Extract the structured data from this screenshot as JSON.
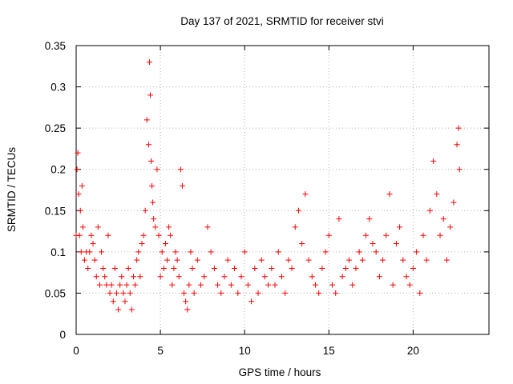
{
  "chart_data": {
    "type": "scatter",
    "title": "Day 137 of 2021, SRMTID for receiver stvi",
    "xlabel": "GPS time / hours",
    "ylabel": "SRMTID / TECUs",
    "xlim": [
      0,
      24.5
    ],
    "ylim": [
      0,
      0.35
    ],
    "x_ticks": [
      0,
      5,
      10,
      15,
      20
    ],
    "x_tick_labels": [
      "0",
      "5",
      "10",
      "15",
      "20"
    ],
    "y_ticks": [
      0,
      0.05,
      0.1,
      0.15,
      0.2,
      0.25,
      0.3,
      0.35
    ],
    "y_tick_labels": [
      "0",
      "0.05",
      "0.1",
      "0.15",
      "0.2",
      "0.25",
      "0.3",
      "0.35"
    ],
    "grid": true,
    "marker": "plus",
    "series": [
      {
        "name": "SRMTID",
        "color": "#ff0000",
        "x": [
          0.0,
          0.05,
          0.1,
          0.15,
          0.2,
          0.25,
          0.3,
          0.35,
          0.4,
          0.5,
          0.6,
          0.7,
          0.8,
          0.9,
          1.0,
          1.1,
          1.2,
          1.3,
          1.4,
          1.5,
          1.6,
          1.7,
          1.8,
          1.9,
          2.0,
          2.1,
          2.2,
          2.3,
          2.4,
          2.5,
          2.6,
          2.7,
          2.8,
          2.9,
          3.0,
          3.1,
          3.2,
          3.3,
          3.4,
          3.5,
          3.6,
          3.7,
          3.8,
          3.9,
          4.0,
          4.1,
          4.2,
          4.3,
          4.35,
          4.4,
          4.45,
          4.5,
          4.55,
          4.6,
          4.7,
          4.8,
          4.9,
          5.0,
          5.1,
          5.2,
          5.3,
          5.4,
          5.5,
          5.6,
          5.7,
          5.8,
          5.9,
          6.0,
          6.1,
          6.2,
          6.3,
          6.4,
          6.5,
          6.6,
          6.7,
          6.8,
          6.9,
          7.0,
          7.2,
          7.4,
          7.6,
          7.8,
          8.0,
          8.2,
          8.4,
          8.6,
          8.8,
          9.0,
          9.2,
          9.4,
          9.6,
          9.8,
          10.0,
          10.2,
          10.4,
          10.6,
          10.8,
          11.0,
          11.2,
          11.4,
          11.6,
          11.8,
          12.0,
          12.2,
          12.4,
          12.6,
          12.8,
          13.0,
          13.2,
          13.4,
          13.6,
          13.8,
          14.0,
          14.2,
          14.4,
          14.6,
          14.8,
          15.0,
          15.2,
          15.4,
          15.6,
          15.8,
          16.0,
          16.2,
          16.4,
          16.6,
          16.8,
          17.0,
          17.2,
          17.4,
          17.6,
          17.8,
          18.0,
          18.2,
          18.4,
          18.6,
          18.8,
          19.0,
          19.2,
          19.4,
          19.6,
          19.8,
          20.0,
          20.2,
          20.4,
          20.6,
          20.8,
          21.0,
          21.2,
          21.4,
          21.6,
          21.8,
          22.0,
          22.2,
          22.4,
          22.6,
          22.7,
          22.75
        ],
        "y": [
          0.12,
          0.2,
          0.22,
          0.17,
          0.12,
          0.15,
          0.1,
          0.18,
          0.13,
          0.09,
          0.1,
          0.08,
          0.1,
          0.12,
          0.11,
          0.09,
          0.07,
          0.13,
          0.06,
          0.1,
          0.08,
          0.07,
          0.06,
          0.12,
          0.05,
          0.06,
          0.04,
          0.08,
          0.05,
          0.03,
          0.06,
          0.07,
          0.05,
          0.04,
          0.06,
          0.08,
          0.05,
          0.03,
          0.07,
          0.06,
          0.09,
          0.1,
          0.07,
          0.11,
          0.12,
          0.15,
          0.26,
          0.23,
          0.33,
          0.29,
          0.21,
          0.18,
          0.16,
          0.14,
          0.13,
          0.2,
          0.12,
          0.07,
          0.1,
          0.08,
          0.11,
          0.09,
          0.13,
          0.12,
          0.06,
          0.08,
          0.1,
          0.09,
          0.07,
          0.2,
          0.18,
          0.05,
          0.04,
          0.03,
          0.06,
          0.1,
          0.08,
          0.05,
          0.09,
          0.06,
          0.07,
          0.13,
          0.1,
          0.08,
          0.06,
          0.05,
          0.07,
          0.09,
          0.06,
          0.08,
          0.05,
          0.07,
          0.1,
          0.06,
          0.04,
          0.08,
          0.05,
          0.09,
          0.07,
          0.06,
          0.08,
          0.06,
          0.1,
          0.07,
          0.05,
          0.09,
          0.08,
          0.13,
          0.15,
          0.11,
          0.17,
          0.09,
          0.07,
          0.06,
          0.05,
          0.08,
          0.1,
          0.12,
          0.06,
          0.05,
          0.14,
          0.07,
          0.08,
          0.09,
          0.06,
          0.08,
          0.1,
          0.09,
          0.12,
          0.14,
          0.11,
          0.1,
          0.07,
          0.09,
          0.12,
          0.17,
          0.06,
          0.11,
          0.13,
          0.09,
          0.07,
          0.06,
          0.08,
          0.1,
          0.05,
          0.12,
          0.09,
          0.15,
          0.21,
          0.17,
          0.12,
          0.14,
          0.09,
          0.13,
          0.16,
          0.23,
          0.25,
          0.2
        ]
      }
    ]
  }
}
